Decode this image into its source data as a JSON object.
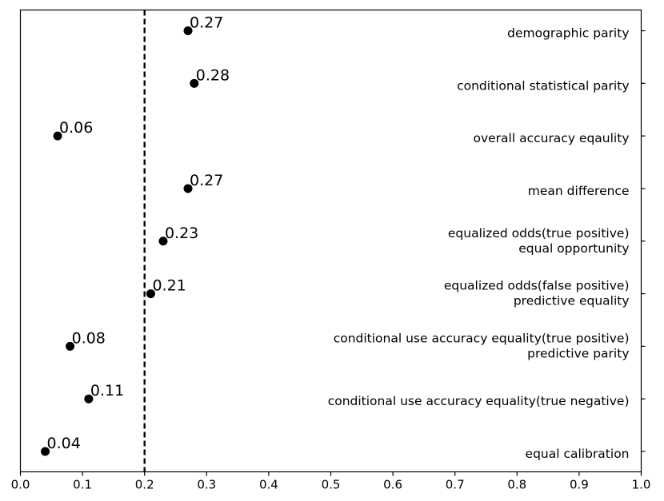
{
  "chart_data": {
    "type": "scatter",
    "title": "",
    "xlabel": "",
    "ylabel": "",
    "xlim": [
      0.0,
      1.0
    ],
    "xticks": [
      "0.0",
      "0.1",
      "0.2",
      "0.3",
      "0.4",
      "0.5",
      "0.6",
      "0.7",
      "0.8",
      "0.9",
      "1.0"
    ],
    "threshold": 0.2,
    "grid": false,
    "points": [
      {
        "lines": [
          "demographic parity"
        ],
        "value": 0.27,
        "label": "0.27"
      },
      {
        "lines": [
          "conditional statistical parity"
        ],
        "value": 0.28,
        "label": "0.28"
      },
      {
        "lines": [
          "overall accuracy eqaulity"
        ],
        "value": 0.06,
        "label": "0.06"
      },
      {
        "lines": [
          "mean difference"
        ],
        "value": 0.27,
        "label": "0.27"
      },
      {
        "lines": [
          "equalized odds(true positive)",
          "equal opportunity"
        ],
        "value": 0.23,
        "label": "0.23"
      },
      {
        "lines": [
          "equalized odds(false positive)",
          "predictive equality"
        ],
        "value": 0.21,
        "label": "0.21"
      },
      {
        "lines": [
          "conditional use accuracy equality(true positive)",
          "predictive parity"
        ],
        "value": 0.08,
        "label": "0.08"
      },
      {
        "lines": [
          "conditional use accuracy equality(true negative)"
        ],
        "value": 0.11,
        "label": "0.11"
      },
      {
        "lines": [
          "equal calibration"
        ],
        "value": 0.04,
        "label": "0.04"
      }
    ]
  }
}
